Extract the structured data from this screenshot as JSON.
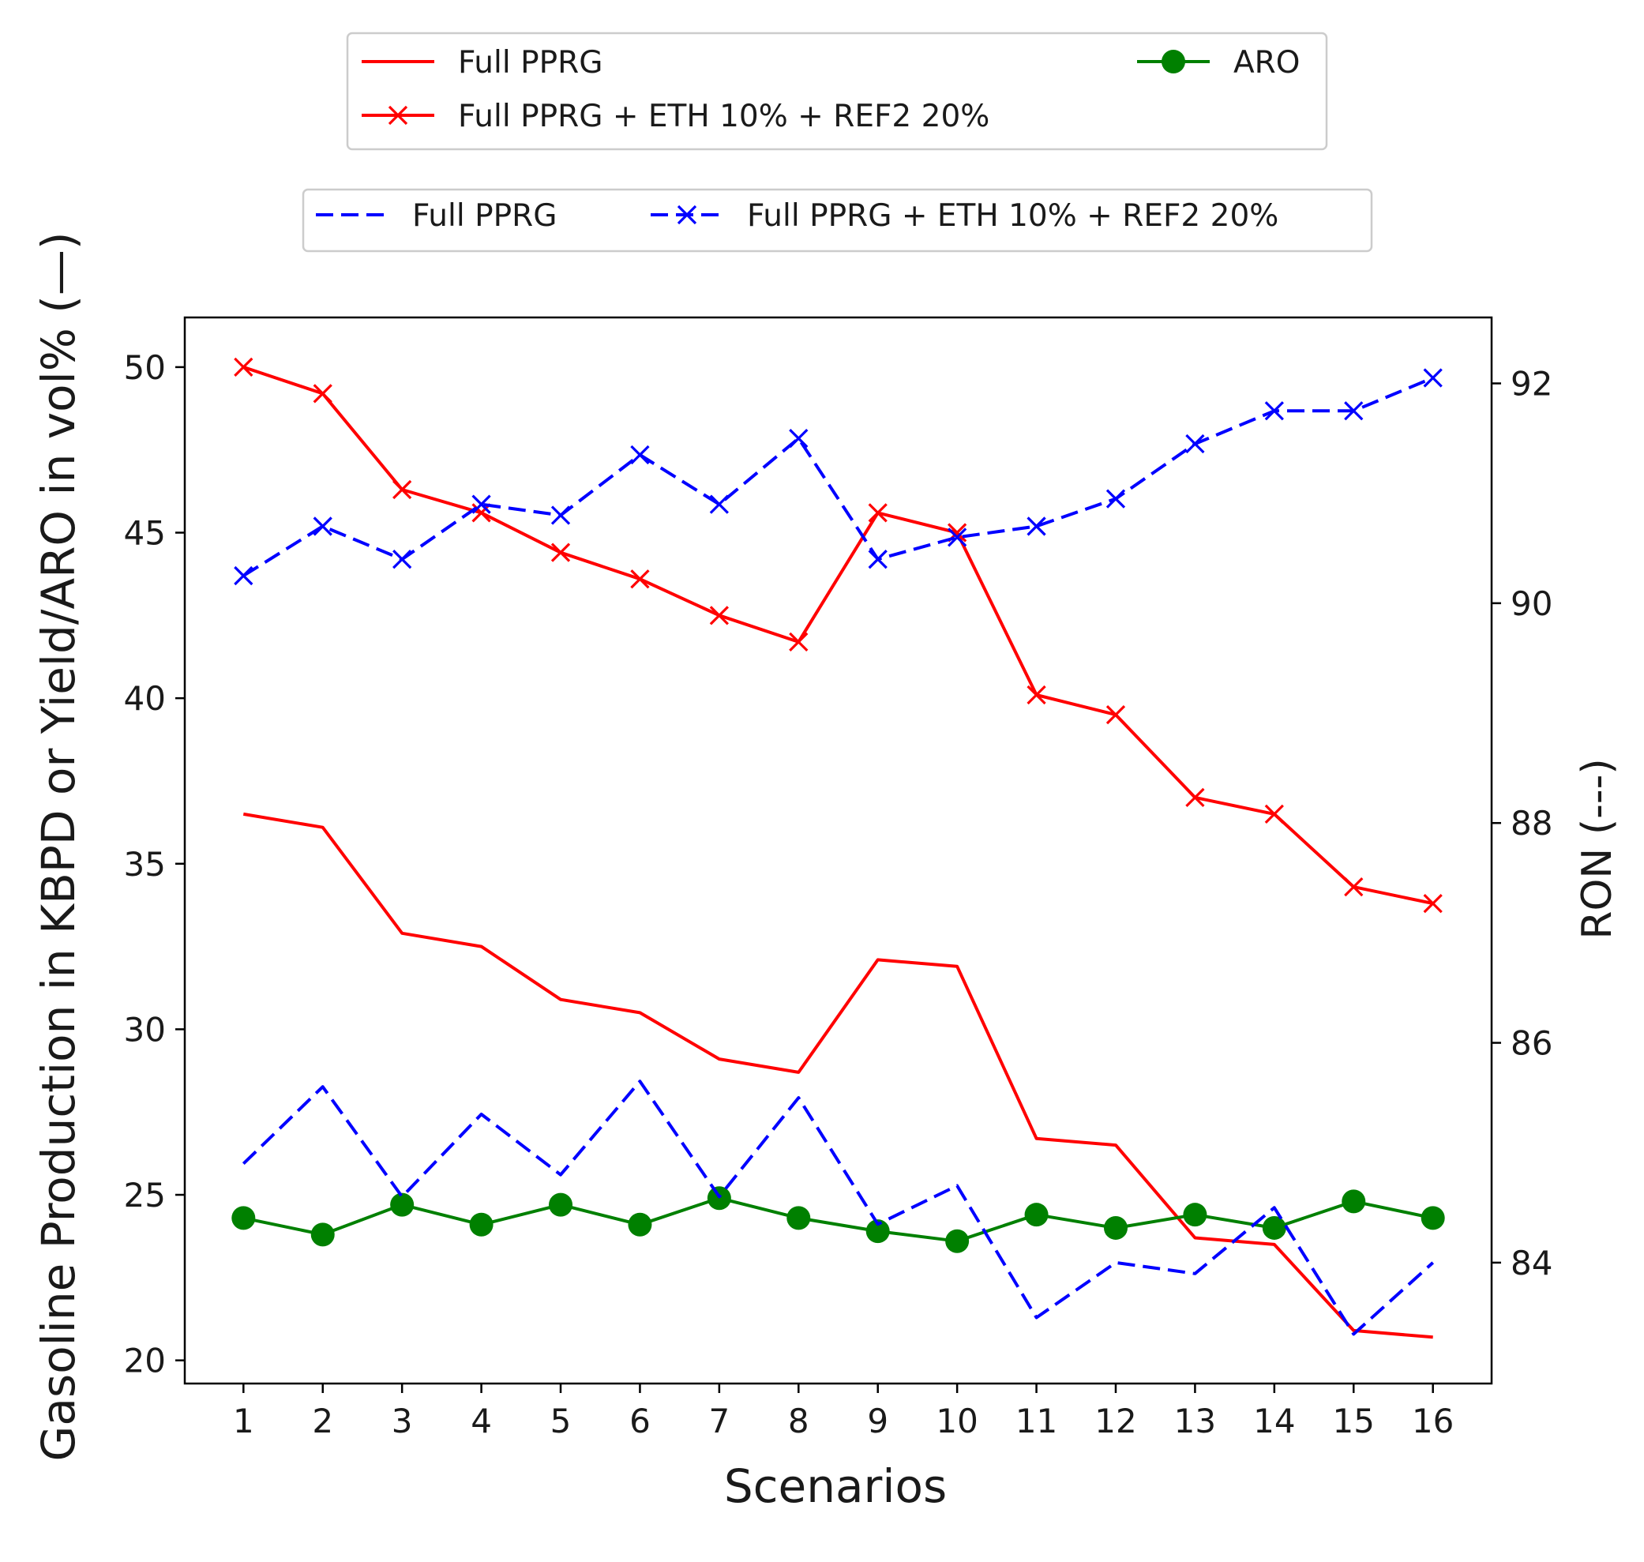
{
  "chart_data": {
    "type": "line",
    "xlabel": "Scenarios",
    "ylabel": "Gasoline Production in KBPD or Yield/ARO in vol% (—)",
    "y2label": "RON (---)",
    "x": [
      1,
      2,
      3,
      4,
      5,
      6,
      7,
      8,
      9,
      10,
      11,
      12,
      13,
      14,
      15,
      16
    ],
    "x_ticks": [
      "1",
      "2",
      "3",
      "4",
      "5",
      "6",
      "7",
      "8",
      "9",
      "10",
      "11",
      "12",
      "13",
      "14",
      "15",
      "16"
    ],
    "y_ticks": [
      "20",
      "25",
      "30",
      "35",
      "40",
      "45",
      "50"
    ],
    "y2_ticks": [
      "84",
      "86",
      "88",
      "90",
      "92"
    ],
    "ylim": [
      19.3,
      51.5
    ],
    "y2lim": [
      82.9,
      92.6
    ],
    "xlim": [
      0.26,
      16.74
    ],
    "grid": false,
    "series": [
      {
        "name": "Full PPRG",
        "axis": "left",
        "color": "#ff0000",
        "style": "solid",
        "marker": "none",
        "values": [
          36.5,
          36.1,
          32.9,
          32.5,
          30.9,
          30.5,
          29.1,
          28.7,
          32.1,
          31.9,
          26.7,
          26.5,
          23.7,
          23.5,
          20.9,
          20.7
        ]
      },
      {
        "name": "Full PPRG + ETH 10% + REF2 20%",
        "axis": "left",
        "color": "#ff0000",
        "style": "solid",
        "marker": "x",
        "values": [
          50.0,
          49.2,
          46.3,
          45.6,
          44.4,
          43.6,
          42.5,
          41.7,
          45.6,
          45.0,
          40.1,
          39.5,
          37.0,
          36.5,
          34.3,
          33.8
        ]
      },
      {
        "name": "ARO",
        "axis": "left",
        "color": "#008000",
        "style": "solid",
        "marker": "o",
        "values": [
          24.3,
          23.8,
          24.7,
          24.1,
          24.7,
          24.1,
          24.9,
          24.3,
          23.9,
          23.6,
          24.4,
          24.0,
          24.4,
          24.0,
          24.8,
          24.3
        ]
      },
      {
        "name": "Full PPRG",
        "axis": "right",
        "color": "#0000ff",
        "style": "dashed",
        "marker": "none",
        "values": [
          84.9,
          85.6,
          84.6,
          85.35,
          84.8,
          85.65,
          84.6,
          85.5,
          84.35,
          84.7,
          83.5,
          84.0,
          83.9,
          84.5,
          83.35,
          84.0
        ]
      },
      {
        "name": "Full PPRG + ETH 10% + REF2 20%",
        "axis": "right",
        "color": "#0000ff",
        "style": "dashed",
        "marker": "x",
        "values": [
          90.25,
          90.7,
          90.4,
          90.9,
          90.8,
          91.35,
          90.9,
          91.5,
          90.4,
          90.6,
          90.7,
          90.95,
          91.45,
          91.75,
          91.75,
          92.05
        ]
      }
    ],
    "legends": [
      {
        "entries": [
          0,
          2,
          1
        ],
        "placement": "top-center"
      },
      {
        "entries": [
          3,
          4
        ],
        "placement": "top-center"
      }
    ]
  }
}
